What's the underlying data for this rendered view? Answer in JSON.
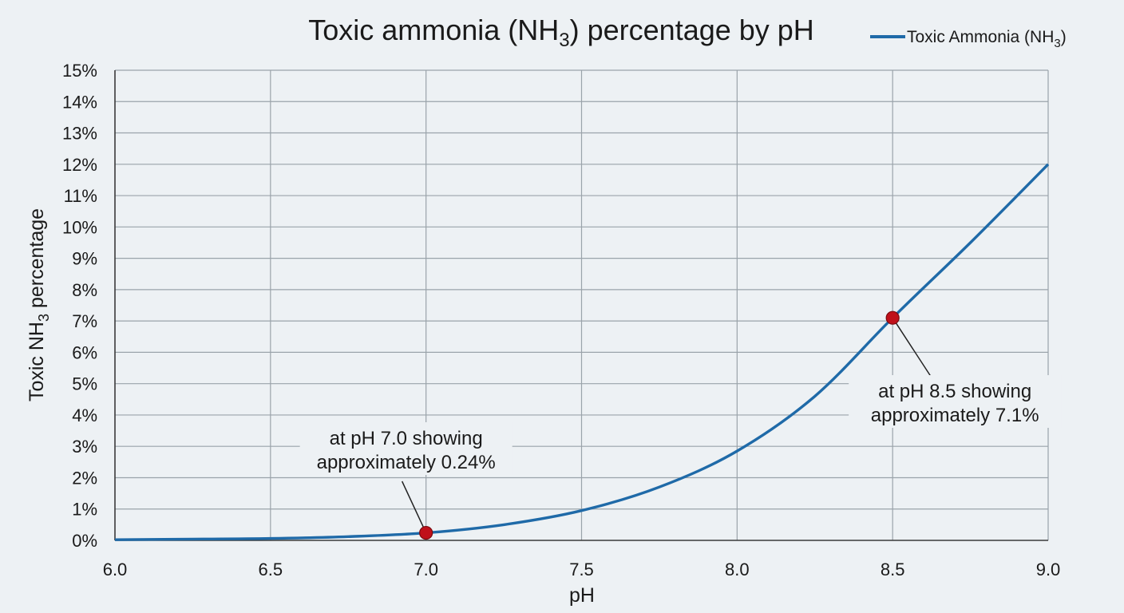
{
  "chart_data": {
    "type": "line",
    "title": "Toxic ammonia (NH",
    "title_sub": "3",
    "title_tail": ") percentage by pH",
    "xlabel": "pH",
    "ylabel": "Toxic NH",
    "ylabel_sub": "3",
    "ylabel_tail": " percentage",
    "xlim": [
      6.0,
      9.0
    ],
    "ylim": [
      0,
      15
    ],
    "x_ticks": [
      "6.0",
      "6.5",
      "7.0",
      "7.5",
      "8.0",
      "8.5",
      "9.0"
    ],
    "y_ticks": [
      "0%",
      "1%",
      "2%",
      "3%",
      "4%",
      "5%",
      "6%",
      "7%",
      "8%",
      "9%",
      "10%",
      "11%",
      "12%",
      "13%",
      "14%",
      "15%"
    ],
    "grid": true,
    "legend_position": "top-right",
    "series": [
      {
        "name": "Toxic Ammonia (NH",
        "name_sub": "3",
        "name_tail": ")",
        "color": "#1f6aa8",
        "x": [
          6.0,
          6.25,
          6.5,
          6.75,
          7.0,
          7.25,
          7.5,
          7.75,
          8.0,
          8.25,
          8.5,
          8.75,
          9.0
        ],
        "y": [
          0.02,
          0.04,
          0.06,
          0.12,
          0.24,
          0.5,
          0.95,
          1.7,
          2.85,
          4.6,
          7.1,
          9.5,
          12.0
        ]
      }
    ],
    "annotations": [
      {
        "x": 7.0,
        "y": 0.24,
        "lines": [
          "at pH 7.0 showing",
          "approximately 0.24%"
        ]
      },
      {
        "x": 8.5,
        "y": 7.1,
        "lines": [
          "at pH 8.5 showing",
          "approximately 7.1%"
        ]
      }
    ],
    "marker_color": "#c0101a"
  }
}
